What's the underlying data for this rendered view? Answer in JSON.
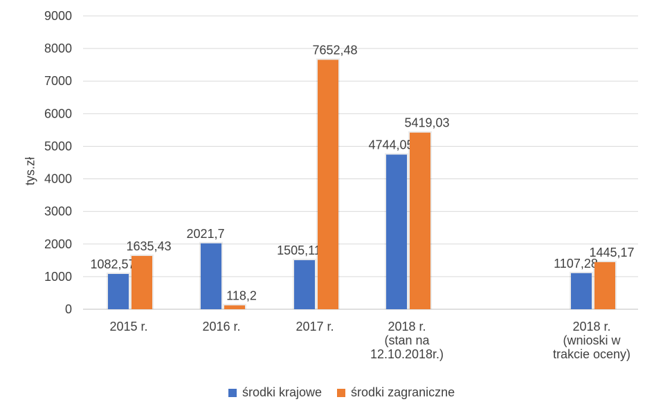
{
  "chart_data": {
    "type": "bar",
    "title": "",
    "xlabel": "",
    "ylabel": "tys.zł",
    "ylim": [
      0,
      9000
    ],
    "yticks": [
      0,
      1000,
      2000,
      3000,
      4000,
      5000,
      6000,
      7000,
      8000,
      9000
    ],
    "grid": true,
    "legend_position": "bottom",
    "categories": [
      [
        "2015 r."
      ],
      [
        "2016 r."
      ],
      [
        "2017 r."
      ],
      [
        "2018 r.",
        "(stan na",
        "12.10.2018r.)"
      ],
      [
        "2018 r.",
        "(wnioski w",
        "trakcie oceny)"
      ]
    ],
    "series": [
      {
        "name": "środki krajowe",
        "color": "#4472C4",
        "values": [
          1082.57,
          2021.7,
          1505.11,
          4744.05,
          1107.28
        ],
        "labels": [
          "1082,57",
          "2021,7",
          "1505,11",
          "4744,05",
          "1107,28"
        ]
      },
      {
        "name": "środki zagraniczne",
        "color": "#ED7D31",
        "values": [
          1635.43,
          118.2,
          7652.48,
          5419.03,
          1445.17
        ],
        "labels": [
          "1635,43",
          "118,2",
          "7652,48",
          "5419,03",
          "1445,17"
        ]
      }
    ]
  }
}
